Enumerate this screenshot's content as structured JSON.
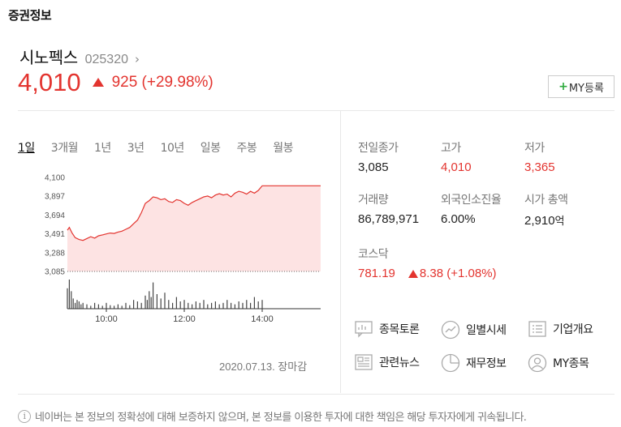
{
  "section_title": "증권정보",
  "stock": {
    "name": "시노펙스",
    "code": "025320",
    "chevron": "›",
    "price": "4,010",
    "change": "925 (+29.98%)"
  },
  "my_button": {
    "plus": "+",
    "label": "MY등록"
  },
  "period_tabs": [
    "1일",
    "3개월",
    "1년",
    "3년",
    "10년",
    "일봉",
    "주봉",
    "월봉"
  ],
  "active_period": "1일",
  "timestamp": "2020.07.13. 장마감",
  "info": {
    "prev_close": {
      "label": "전일종가",
      "value": "3,085"
    },
    "high": {
      "label": "고가",
      "value": "4,010"
    },
    "low": {
      "label": "저가",
      "value": "3,365"
    },
    "volume": {
      "label": "거래량",
      "value": "86,789,971"
    },
    "foreign_ratio": {
      "label": "외국인소진율",
      "value": "6.00%"
    },
    "market_cap": {
      "label": "시가 총액",
      "value": "2,910",
      "unit": "억"
    },
    "kosdaq": {
      "label": "코스닥",
      "value": "781.19",
      "change": "8.38 (+1.08%)"
    }
  },
  "links": {
    "discussion": "종목토론",
    "daily_price": "일별시세",
    "company_overview": "기업개요",
    "news": "관련뉴스",
    "financials": "재무정보",
    "my_stocks": "MY종목"
  },
  "disclaimer": "네이버는 본 정보의 정확성에 대해 보증하지 않으며, 본 정보를 이용한 투자에 대한 책임은 해당 투자자에게 귀속됩니다.",
  "colors": {
    "up": "#e3342f",
    "area_fill": "#fde3e3",
    "my_plus": "#2eaa3e"
  },
  "chart_data": {
    "type": "area",
    "yticks": [
      "4,100",
      "3,897",
      "3,694",
      "3,491",
      "3,288",
      "3,085"
    ],
    "ylim": [
      3085,
      4100
    ],
    "xticks": [
      "10:00",
      "12:00",
      "14:00"
    ],
    "x_range_hours": [
      9.0,
      15.5
    ],
    "reference_line": 3085,
    "price_series": {
      "x": [
        9.0,
        9.05,
        9.12,
        9.2,
        9.3,
        9.4,
        9.5,
        9.6,
        9.7,
        9.8,
        9.9,
        10.0,
        10.1,
        10.2,
        10.3,
        10.4,
        10.5,
        10.6,
        10.7,
        10.8,
        10.9,
        11.0,
        11.1,
        11.2,
        11.3,
        11.4,
        11.5,
        11.6,
        11.7,
        11.8,
        11.9,
        12.0,
        12.1,
        12.2,
        12.3,
        12.4,
        12.5,
        12.6,
        12.7,
        12.8,
        12.9,
        13.0,
        13.1,
        13.2,
        13.3,
        13.4,
        13.5,
        13.6,
        13.7,
        13.8,
        13.9,
        14.0,
        15.5
      ],
      "values": [
        3530,
        3560,
        3500,
        3450,
        3430,
        3420,
        3440,
        3460,
        3445,
        3470,
        3480,
        3490,
        3500,
        3495,
        3510,
        3520,
        3540,
        3560,
        3600,
        3640,
        3720,
        3820,
        3850,
        3890,
        3880,
        3860,
        3870,
        3840,
        3830,
        3860,
        3850,
        3820,
        3800,
        3830,
        3850,
        3870,
        3890,
        3900,
        3880,
        3910,
        3925,
        3910,
        3920,
        3890,
        3930,
        3950,
        3940,
        3920,
        3950,
        3930,
        3960,
        4010,
        4010
      ]
    },
    "volume_series": {
      "x": [
        9.0,
        9.05,
        9.1,
        9.15,
        9.2,
        9.25,
        9.3,
        9.35,
        9.4,
        9.5,
        9.6,
        9.7,
        9.8,
        9.9,
        10.0,
        10.1,
        10.2,
        10.3,
        10.4,
        10.5,
        10.6,
        10.7,
        10.8,
        10.9,
        11.0,
        11.05,
        11.1,
        11.15,
        11.2,
        11.3,
        11.4,
        11.5,
        11.6,
        11.7,
        11.8,
        11.9,
        12.0,
        12.1,
        12.2,
        12.3,
        12.4,
        12.5,
        12.6,
        12.7,
        12.8,
        12.9,
        13.0,
        13.1,
        13.2,
        13.3,
        13.4,
        13.5,
        13.6,
        13.7,
        13.8,
        13.9,
        14.0
      ],
      "values": [
        0.7,
        1.0,
        0.6,
        0.35,
        0.2,
        0.3,
        0.25,
        0.15,
        0.2,
        0.15,
        0.1,
        0.2,
        0.15,
        0.1,
        0.2,
        0.12,
        0.1,
        0.15,
        0.1,
        0.2,
        0.12,
        0.3,
        0.25,
        0.2,
        0.45,
        0.3,
        0.6,
        0.4,
        0.9,
        0.5,
        0.35,
        0.55,
        0.3,
        0.2,
        0.4,
        0.25,
        0.3,
        0.2,
        0.15,
        0.25,
        0.2,
        0.3,
        0.15,
        0.2,
        0.25,
        0.15,
        0.2,
        0.3,
        0.2,
        0.15,
        0.25,
        0.2,
        0.3,
        0.2,
        0.4,
        0.25,
        0.3
      ]
    }
  }
}
